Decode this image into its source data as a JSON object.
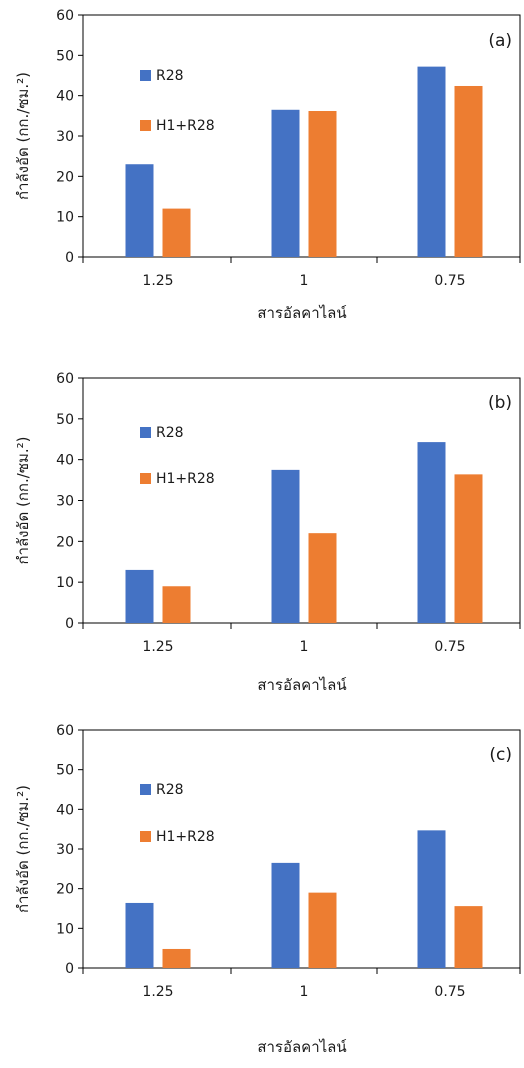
{
  "colors": {
    "R28": "#4472C4",
    "H1+R28": "#ED7D31",
    "axis": "#000000"
  },
  "chart_data": [
    {
      "type": "bar",
      "panel_label": "(a)",
      "categories": [
        "1.25",
        "1",
        "0.75"
      ],
      "series": [
        {
          "name": "R28",
          "values": [
            23,
            36.5,
            47.2
          ]
        },
        {
          "name": "H1+R28",
          "values": [
            12,
            36.2,
            42.4
          ]
        }
      ],
      "xlabel": "สารอัลคาไลน์",
      "ylabel": "กำลังอัด (กก./ซม.²)",
      "ylim": [
        0,
        60
      ],
      "yticks": [
        0,
        10,
        20,
        30,
        40,
        50,
        60
      ],
      "grid": false,
      "legend_placement": "upper-left inside plot"
    },
    {
      "type": "bar",
      "panel_label": "(b)",
      "categories": [
        "1.25",
        "1",
        "0.75"
      ],
      "series": [
        {
          "name": "R28",
          "values": [
            13,
            37.5,
            44.3
          ]
        },
        {
          "name": "H1+R28",
          "values": [
            9,
            22,
            36.4
          ]
        }
      ],
      "xlabel": "สารอัลคาไลน์",
      "ylabel": "กำลังอัด (กก./ซม.²)",
      "ylim": [
        0,
        60
      ],
      "yticks": [
        0,
        10,
        20,
        30,
        40,
        50,
        60
      ],
      "grid": false,
      "legend_placement": "upper-left inside plot"
    },
    {
      "type": "bar",
      "panel_label": "(c)",
      "categories": [
        "1.25",
        "1",
        "0.75"
      ],
      "series": [
        {
          "name": "R28",
          "values": [
            16.4,
            26.5,
            34.7
          ]
        },
        {
          "name": "H1+R28",
          "values": [
            4.8,
            19,
            15.6
          ]
        }
      ],
      "xlabel": "สารอัลคาไลน์",
      "ylabel": "กำลังอัด (กก./ซม.²)",
      "ylim": [
        0,
        60
      ],
      "yticks": [
        0,
        10,
        20,
        30,
        40,
        50,
        60
      ],
      "grid": false,
      "legend_placement": "upper-left inside plot"
    }
  ]
}
